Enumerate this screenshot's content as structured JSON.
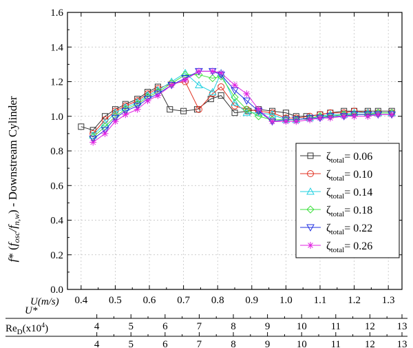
{
  "chart_data": {
    "type": "line",
    "ylabel_parts": {
      "f": "f",
      "star": "* (",
      "f2": "f",
      "osc": "osc",
      "slash": "/",
      "f3": "f",
      "nw": "n,w",
      "close": ")",
      "rest": " - Downstream Cylinder"
    },
    "ylim": [
      0.0,
      1.6
    ],
    "yticks": [
      0.0,
      0.2,
      0.4,
      0.6,
      0.8,
      1.0,
      1.2,
      1.4,
      1.6
    ],
    "ytick_labels": [
      "0.0",
      "0.2",
      "0.4",
      "0.6",
      "0.8",
      "1.0",
      "1.2",
      "1.4",
      "1.6"
    ],
    "xlim": [
      0.36,
      1.34
    ],
    "xticks": [
      0.4,
      0.5,
      0.6,
      0.7,
      0.8,
      0.9,
      1.0,
      1.1,
      1.2,
      1.3
    ],
    "xtick_labels": [
      "0.4",
      "0.5",
      "0.6",
      "0.7",
      "0.8",
      "0.9",
      "1.0",
      "1.1",
      "1.2",
      "1.3"
    ],
    "xaxis_label": "U(m/s)",
    "grid": true,
    "legend_position": "lower-right",
    "secondary_axes": [
      {
        "label_main": "U*",
        "label_sub": "",
        "ticks": [
          "4",
          "5",
          "6",
          "7",
          "8",
          "9",
          "10",
          "11",
          "12"
        ],
        "tick_u": [
          0.446,
          0.546,
          0.646,
          0.746,
          0.846,
          0.946,
          1.046,
          1.146,
          1.246
        ],
        "end_tick_u": 1.34
      },
      {
        "label_main": "Re",
        "label_sub": "D",
        "label_tail": "(x10",
        "label_sup": "4",
        "label_end": ")",
        "ticks": [
          "4",
          "5",
          "6",
          "7",
          "8",
          "9",
          "10",
          "11",
          "12"
        ],
        "tick_u": [
          0.446,
          0.546,
          0.646,
          0.746,
          0.846,
          0.946,
          1.046,
          1.146,
          1.246
        ],
        "end_tick_u": 1.34
      }
    ],
    "legend_zeta": "ζ",
    "legend_sub": "total",
    "x": [
      0.4,
      0.43,
      0.46,
      0.49,
      0.52,
      0.55,
      0.58,
      0.61,
      0.64,
      0.67,
      0.7,
      0.73,
      0.76,
      0.79,
      0.82,
      0.85,
      0.88,
      0.91,
      0.94,
      0.97,
      1.0,
      1.03,
      1.06,
      1.09,
      1.12,
      1.15,
      1.18,
      1.21,
      1.24,
      1.27,
      1.3
    ],
    "series": [
      {
        "name": "= 0.06",
        "color": "#333333",
        "marker": "square",
        "x": [
          0.4,
          0.435,
          0.47,
          0.5,
          0.53,
          0.565,
          0.595,
          0.625,
          0.66,
          0.7,
          0.74,
          0.78,
          0.81,
          0.85,
          0.89,
          0.92,
          0.96,
          1.0,
          1.03,
          1.06,
          1.1,
          1.13,
          1.17,
          1.2,
          1.24,
          1.27,
          1.31
        ],
        "values": [
          0.94,
          0.92,
          1.0,
          1.04,
          1.07,
          1.1,
          1.14,
          1.17,
          1.04,
          1.03,
          1.04,
          1.1,
          1.12,
          1.02,
          1.03,
          1.04,
          1.03,
          1.02,
          1.0,
          1.0,
          1.01,
          1.02,
          1.03,
          1.03,
          1.03,
          1.03,
          1.03
        ]
      },
      {
        "name": "= 0.10",
        "color": "#e03020",
        "marker": "circle",
        "x": [
          0.435,
          0.47,
          0.5,
          0.53,
          0.565,
          0.595,
          0.625,
          0.665,
          0.705,
          0.745,
          0.785,
          0.81,
          0.85,
          0.885,
          0.92,
          0.96,
          1.0,
          1.03,
          1.07,
          1.1,
          1.13,
          1.17,
          1.2,
          1.24,
          1.27,
          1.31
        ],
        "values": [
          0.9,
          0.98,
          1.03,
          1.06,
          1.09,
          1.13,
          1.16,
          1.19,
          1.2,
          1.04,
          1.13,
          1.17,
          1.06,
          1.04,
          1.03,
          1.02,
          0.99,
          0.99,
          1.0,
          1.01,
          1.02,
          1.02,
          1.03,
          1.02,
          1.02,
          1.02
        ]
      },
      {
        "name": "= 0.14",
        "color": "#20d0e0",
        "marker": "triangle-up",
        "x": [
          0.435,
          0.47,
          0.5,
          0.53,
          0.565,
          0.595,
          0.625,
          0.665,
          0.705,
          0.745,
          0.785,
          0.81,
          0.85,
          0.885,
          0.92,
          0.96,
          1.0,
          1.03,
          1.07,
          1.1,
          1.13,
          1.17,
          1.2,
          1.24,
          1.27,
          1.31
        ],
        "values": [
          0.89,
          0.96,
          1.02,
          1.05,
          1.08,
          1.12,
          1.15,
          1.2,
          1.25,
          1.18,
          1.14,
          1.25,
          1.08,
          1.02,
          1.02,
          1.01,
          0.98,
          0.98,
          0.99,
          1.0,
          1.01,
          1.01,
          1.02,
          1.02,
          1.02,
          1.02
        ]
      },
      {
        "name": "= 0.18",
        "color": "#40e040",
        "marker": "diamond",
        "x": [
          0.435,
          0.47,
          0.5,
          0.53,
          0.565,
          0.595,
          0.625,
          0.665,
          0.705,
          0.745,
          0.785,
          0.81,
          0.85,
          0.885,
          0.92,
          0.96,
          1.0,
          1.03,
          1.07,
          1.1,
          1.13,
          1.17,
          1.2,
          1.24,
          1.27,
          1.31
        ],
        "values": [
          0.88,
          0.94,
          1.0,
          1.04,
          1.07,
          1.11,
          1.14,
          1.19,
          1.24,
          1.24,
          1.22,
          1.23,
          1.11,
          1.04,
          1.0,
          0.98,
          0.98,
          0.98,
          0.99,
          1.0,
          1.0,
          1.01,
          1.01,
          1.01,
          1.02,
          1.02
        ]
      },
      {
        "name": "= 0.22",
        "color": "#2030e0",
        "marker": "triangle-down",
        "x": [
          0.435,
          0.47,
          0.5,
          0.53,
          0.565,
          0.595,
          0.625,
          0.665,
          0.705,
          0.745,
          0.785,
          0.81,
          0.85,
          0.885,
          0.92,
          0.96,
          1.0,
          1.03,
          1.07,
          1.1,
          1.13,
          1.17,
          1.2,
          1.24,
          1.27,
          1.31
        ],
        "values": [
          0.87,
          0.92,
          0.99,
          1.03,
          1.06,
          1.1,
          1.13,
          1.18,
          1.22,
          1.26,
          1.26,
          1.24,
          1.15,
          1.09,
          1.03,
          0.97,
          0.98,
          0.98,
          0.99,
          0.99,
          1.0,
          1.0,
          1.01,
          1.01,
          1.01,
          1.01
        ]
      },
      {
        "name": "= 0.26",
        "color": "#e020e0",
        "marker": "star",
        "x": [
          0.435,
          0.47,
          0.5,
          0.53,
          0.565,
          0.595,
          0.625,
          0.665,
          0.705,
          0.745,
          0.785,
          0.81,
          0.85,
          0.885,
          0.92,
          0.96,
          1.0,
          1.03,
          1.07,
          1.1,
          1.13,
          1.17,
          1.2,
          1.24,
          1.27,
          1.31
        ],
        "values": [
          0.85,
          0.9,
          0.97,
          1.01,
          1.04,
          1.09,
          1.12,
          1.18,
          1.21,
          1.26,
          1.26,
          1.25,
          1.18,
          1.13,
          1.04,
          0.97,
          0.97,
          0.97,
          0.98,
          0.99,
          0.99,
          1.0,
          1.0,
          1.0,
          1.01,
          1.01
        ]
      }
    ]
  }
}
